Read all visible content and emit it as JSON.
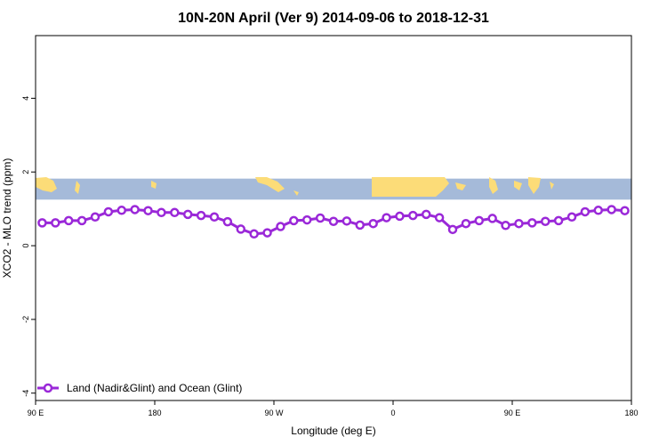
{
  "chart_data": {
    "type": "line",
    "title": "10N-20N April (Ver 9)   2014-09-06 to 2018-12-31",
    "xlabel": "Longitude (deg E)",
    "ylabel": "XCO2 - MLO trend (ppm)",
    "xlim": [
      90,
      540
    ],
    "ylim": [
      -4.2,
      5.7
    ],
    "x_ticks": [
      {
        "value": 90,
        "label": "90 E"
      },
      {
        "value": 180,
        "label": "180"
      },
      {
        "value": 270,
        "label": "90 W"
      },
      {
        "value": 360,
        "label": "0"
      },
      {
        "value": 450,
        "label": "90 E"
      },
      {
        "value": 540,
        "label": "180"
      }
    ],
    "y_ticks": [
      {
        "value": -4,
        "label": "-4"
      },
      {
        "value": -2,
        "label": "-2"
      },
      {
        "value": 0,
        "label": "0"
      },
      {
        "value": 2,
        "label": "2"
      },
      {
        "value": 4,
        "label": "4"
      }
    ],
    "map_band": {
      "ymin": 1.25,
      "ymax": 1.82,
      "ocean_color": "#a5bad9",
      "land_color": "#fcdc78"
    },
    "series": [
      {
        "name": "Land (Nadir&Glint) and Ocean (Glint)",
        "color": "#9a28d8",
        "x": [
          95,
          105,
          115,
          125,
          135,
          145,
          155,
          165,
          175,
          185,
          195,
          205,
          215,
          225,
          235,
          245,
          255,
          265,
          275,
          285,
          295,
          305,
          315,
          325,
          335,
          345,
          355,
          365,
          375,
          385,
          395,
          405,
          415,
          425,
          435,
          445,
          455,
          465,
          475,
          485,
          495,
          505,
          515,
          525,
          535
        ],
        "values": [
          0.62,
          0.62,
          0.68,
          0.68,
          0.78,
          0.92,
          0.96,
          0.98,
          0.95,
          0.9,
          0.9,
          0.85,
          0.82,
          0.78,
          0.65,
          0.45,
          0.32,
          0.35,
          0.52,
          0.68,
          0.7,
          0.75,
          0.66,
          0.67,
          0.56,
          0.6,
          0.76,
          0.8,
          0.82,
          0.85,
          0.76,
          0.44,
          0.6,
          0.68,
          0.74,
          0.55,
          0.6,
          0.62,
          0.66,
          0.68,
          0.78,
          0.92,
          0.96,
          0.98,
          0.95
        ]
      }
    ],
    "legend_position": "bottom-left"
  }
}
